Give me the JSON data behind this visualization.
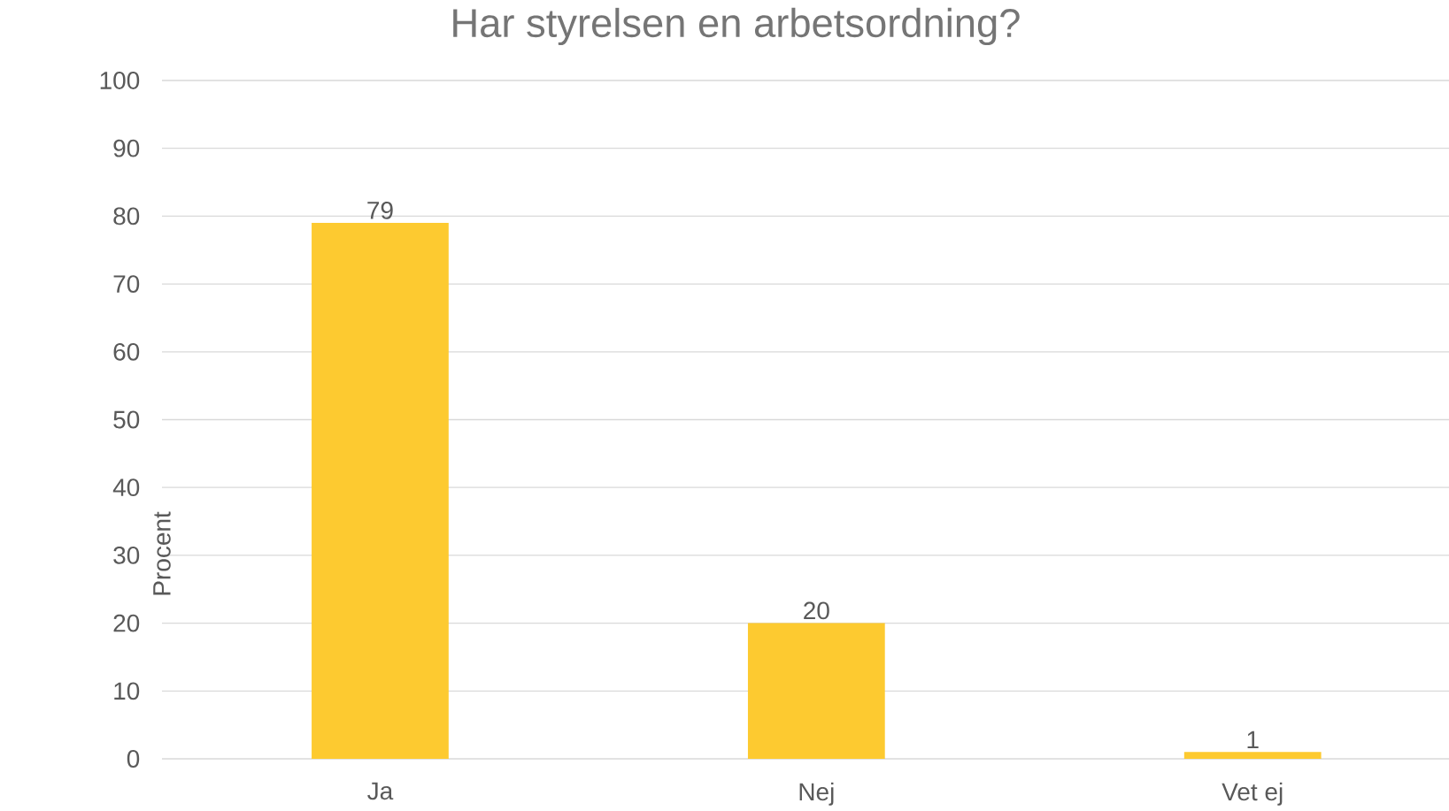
{
  "chart_data": {
    "type": "bar",
    "title": "Har styrelsen en arbetsordning?",
    "ylabel": "Procent",
    "categories": [
      "Ja",
      "Nej",
      "Vet ej"
    ],
    "values": [
      79,
      20,
      1
    ],
    "color": "#fdca30",
    "ylim": [
      0,
      100
    ],
    "yticks": [
      0,
      10,
      20,
      30,
      40,
      50,
      60,
      70,
      80,
      90,
      100
    ],
    "grid": "y",
    "data_labels": true
  }
}
